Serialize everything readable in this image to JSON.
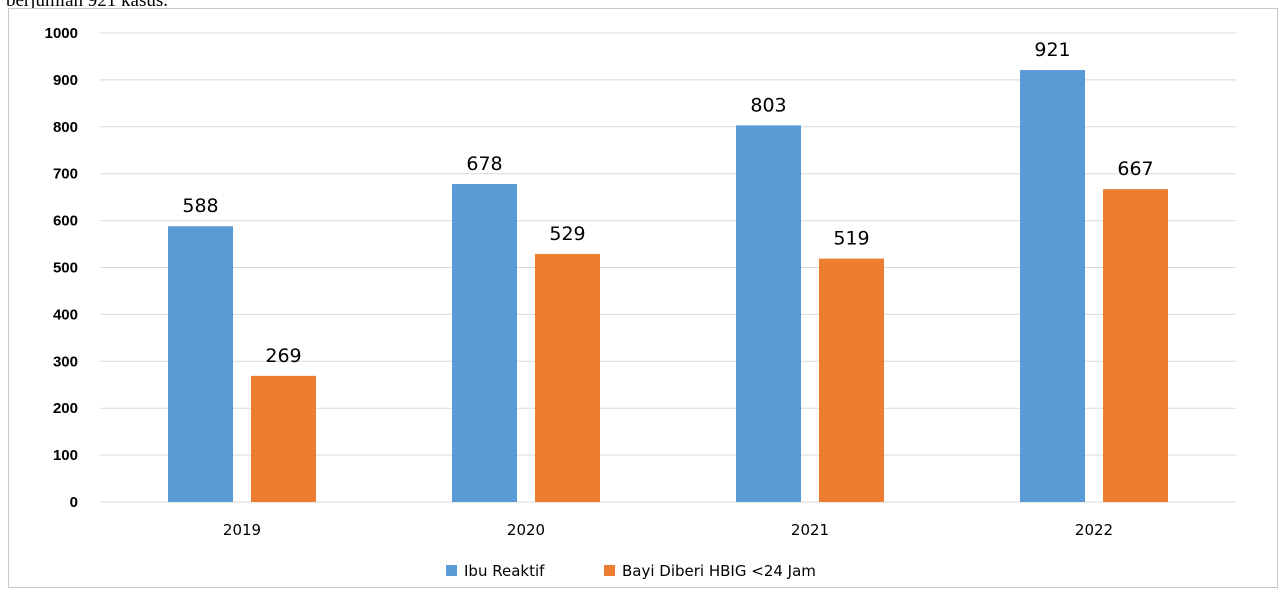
{
  "caption": "berjumlah 921 kasus.",
  "chart_data": {
    "type": "bar",
    "categories": [
      "2019",
      "2020",
      "2021",
      "2022"
    ],
    "series": [
      {
        "name": "Ibu Reaktif",
        "values": [
          588,
          678,
          803,
          921
        ],
        "color": "#5b9bd5"
      },
      {
        "name": "Bayi Diberi HBIG <24 Jam",
        "values": [
          269,
          529,
          519,
          667
        ],
        "color": "#ed7d31"
      }
    ],
    "yticks": [
      "0",
      "100",
      "200",
      "300",
      "400",
      "500",
      "600",
      "700",
      "800",
      "900",
      "1000"
    ],
    "ylim": [
      0,
      1000
    ],
    "grid": true,
    "legend_position": "bottom"
  }
}
